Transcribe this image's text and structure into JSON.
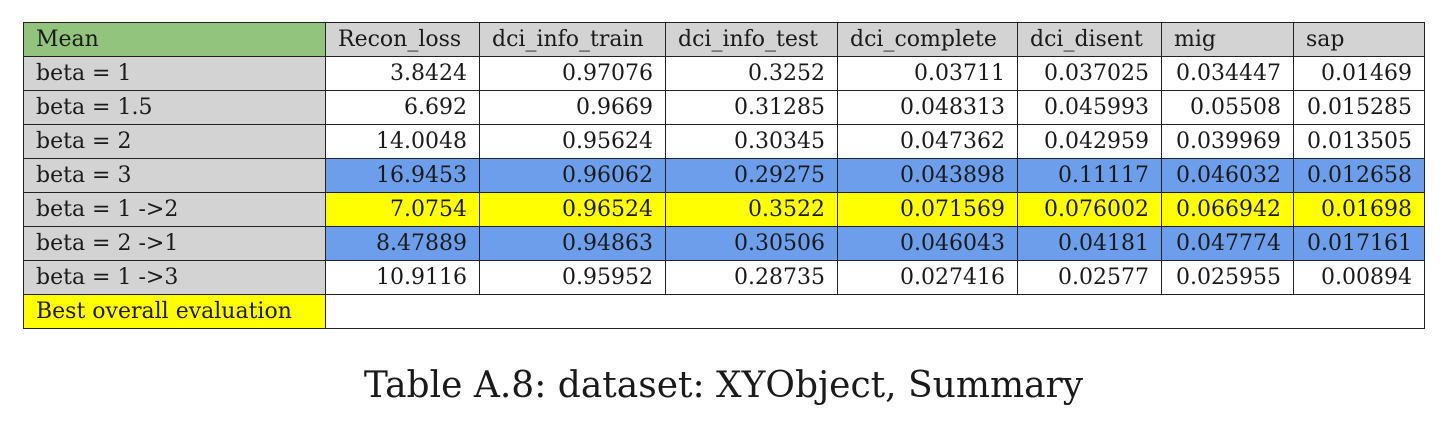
{
  "table": {
    "corner": "Mean",
    "columns": [
      "Recon_loss",
      "dci_info_train",
      "dci_info_test",
      "dci_complete",
      "dci_disent",
      "mig",
      "sap"
    ],
    "rows": [
      {
        "label": "beta = 1",
        "values": [
          "3.8424",
          "0.97076",
          "0.3252",
          "0.03711",
          "0.037025",
          "0.034447",
          "0.01469"
        ]
      },
      {
        "label": "beta = 1.5",
        "values": [
          "6.692",
          "0.9669",
          "0.31285",
          "0.048313",
          "0.045993",
          "0.05508",
          "0.015285"
        ]
      },
      {
        "label": "beta = 2",
        "values": [
          "14.0048",
          "0.95624",
          "0.30345",
          "0.047362",
          "0.042959",
          "0.039969",
          "0.013505"
        ]
      },
      {
        "label": "beta = 3",
        "values": [
          "16.9453",
          "0.96062",
          "0.29275",
          "0.043898",
          "0.11117",
          "0.046032",
          "0.012658"
        ]
      },
      {
        "label": "beta = 1 ->2",
        "values": [
          "7.0754",
          "0.96524",
          "0.3522",
          "0.071569",
          "0.076002",
          "0.066942",
          "0.01698"
        ]
      },
      {
        "label": "beta = 2 ->1",
        "values": [
          "8.47889",
          "0.94863",
          "0.30506",
          "0.046043",
          "0.04181",
          "0.047774",
          "0.017161"
        ]
      },
      {
        "label": "beta = 1 ->3",
        "values": [
          "10.9116",
          "0.95952",
          "0.28735",
          "0.027416",
          "0.02577",
          "0.025955",
          "0.00894"
        ]
      }
    ],
    "legend": "Best overall evaluation",
    "colors": {
      "header_gray": "#d3d3d3",
      "corner_green": "#93c47d",
      "highlight_blue": "#6d9eeb",
      "highlight_yellow": "#ffff00"
    }
  },
  "caption": "Table A.8: dataset: XYObject, Summary"
}
